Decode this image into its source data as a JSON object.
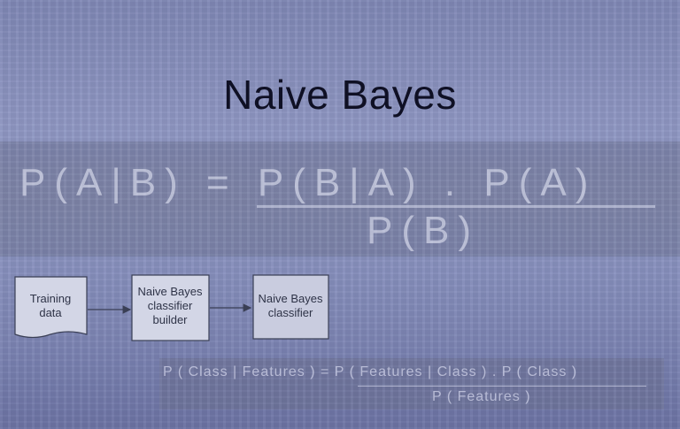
{
  "slide": {
    "title": "Naive Bayes",
    "formula_large": {
      "numerator": "P(A|B) = P(B|A) . P(A)",
      "denominator": "P(B)"
    },
    "flowchart": {
      "nodes": [
        {
          "line1": "Training",
          "line2": "data"
        },
        {
          "line1": "Naive Bayes",
          "line2": "classifier",
          "line3": "builder"
        },
        {
          "line1": "Naive Bayes",
          "line2": "classifier"
        }
      ]
    },
    "formula_small": {
      "numerator": "P ( Class | Features )  =  P ( Features | Class ) . P ( Class )",
      "denominator": "P ( Features )"
    }
  }
}
